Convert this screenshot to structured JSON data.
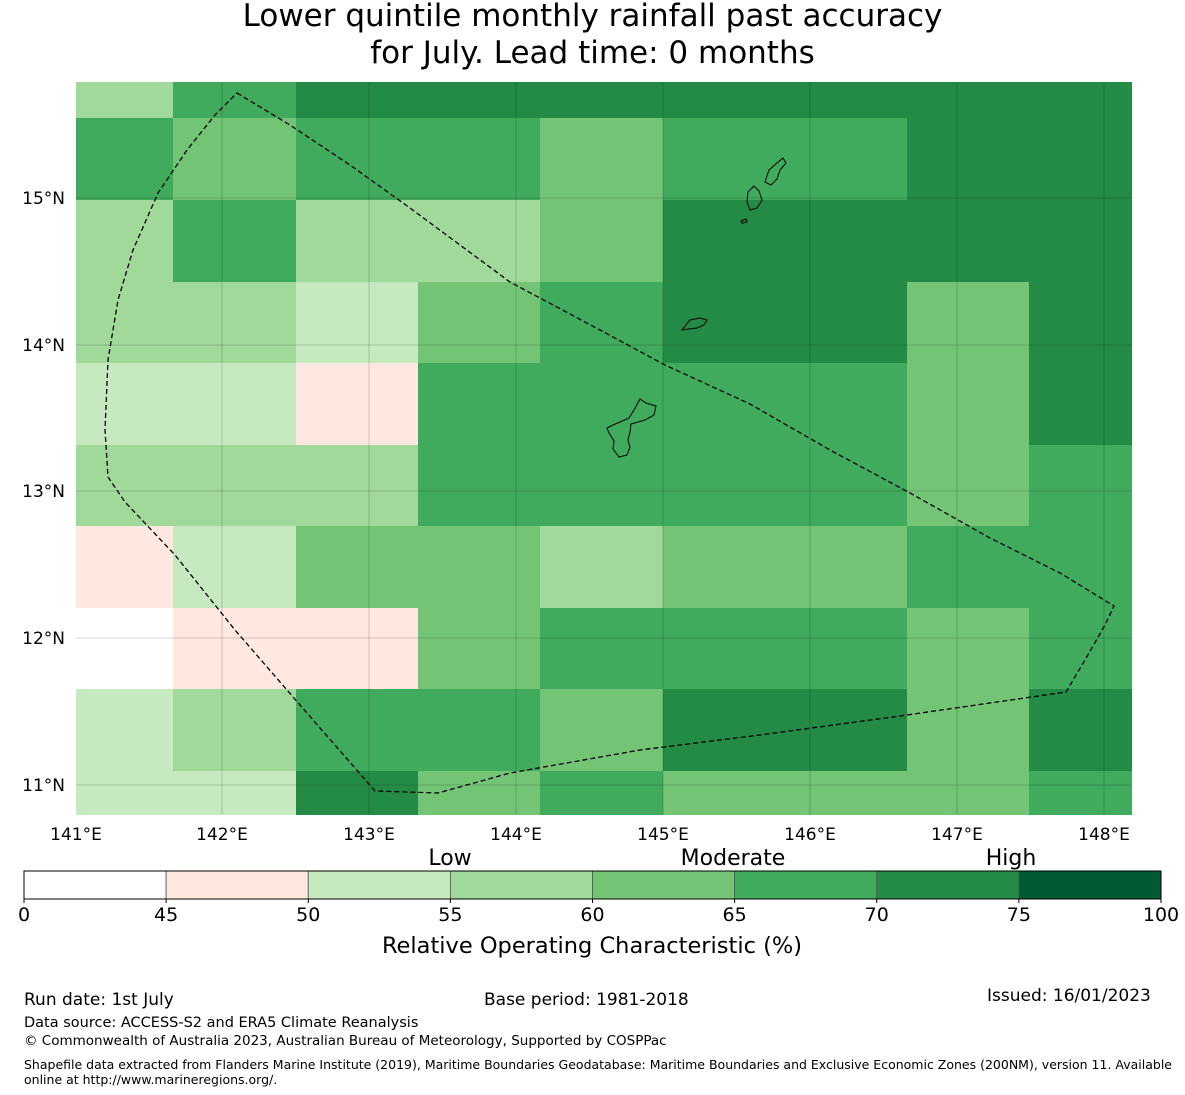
{
  "title": {
    "line1": "Lower quintile monthly rainfall past accuracy",
    "line2": "for July. Lead time: 0 months"
  },
  "map": {
    "lon_range": [
      141.0,
      148.2
    ],
    "lat_range": [
      10.8,
      15.8
    ],
    "lon_ticks": [
      "141°E",
      "142°E",
      "143°E",
      "144°E",
      "145°E",
      "146°E",
      "147°E",
      "148°E"
    ],
    "lat_ticks": [
      "15°N",
      "14°N",
      "13°N",
      "12°N",
      "11°N"
    ],
    "grid": true,
    "grid_rows": [
      [
        3,
        5,
        6,
        6,
        6,
        6,
        6,
        6
      ],
      [
        5,
        4,
        5,
        5,
        4,
        5,
        6,
        6
      ],
      [
        3,
        5,
        3,
        3,
        4,
        6,
        6,
        6
      ],
      [
        3,
        3,
        2,
        4,
        5,
        6,
        4,
        6
      ],
      [
        2,
        2,
        1,
        5,
        5,
        5,
        4,
        6
      ],
      [
        3,
        3,
        3,
        5,
        5,
        5,
        4,
        5
      ],
      [
        1,
        2,
        4,
        4,
        3,
        4,
        5,
        5
      ],
      [
        0,
        1,
        1,
        4,
        5,
        5,
        4,
        5
      ],
      [
        2,
        3,
        5,
        5,
        4,
        6,
        4,
        6
      ],
      [
        2,
        2,
        6,
        4,
        5,
        4,
        4,
        5
      ]
    ]
  },
  "colorbar": {
    "category_labels": [
      "Low",
      "Moderate",
      "High"
    ],
    "ticks": [
      "0",
      "45",
      "50",
      "55",
      "60",
      "65",
      "70",
      "75",
      "100"
    ],
    "colors": [
      "#ffffff",
      "#fee8e0",
      "#c7e9c0",
      "#a1d99b",
      "#74c476",
      "#41ab5d",
      "#238b45",
      "#005a32"
    ],
    "label": "Relative Operating Characteristic (%)"
  },
  "footer": {
    "run_date": "Run date: 1st July",
    "base_period": "Base period: 1981-2018",
    "issued": "Issued: 16/01/2023",
    "data_source": "Data source: ACCESS-S2 and ERA5 Climate Reanalysis",
    "copyright": "© Commonwealth of Australia 2023, Australian Bureau of Meteorology, Supported by COSPPac",
    "shapefile": "Shapefile data extracted from Flanders Marine Institute (2019), Maritime Boundaries Geodatabase: Maritime Boundaries and Exclusive Economic Zones (200NM), version 11. Available online at http://www.marineregions.org/."
  }
}
